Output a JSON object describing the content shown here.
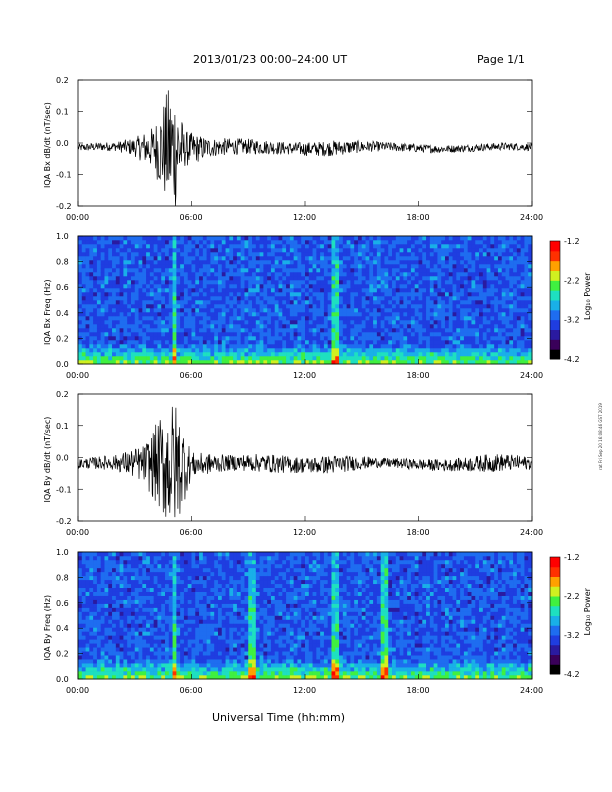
{
  "header": {
    "title": "2013/01/23  00:00–24:00 UT",
    "page": "Page 1/1"
  },
  "side_stamp": "rat Fri Sep 20 16:08:46 GST 2019",
  "xlabel": "Universal Time (hh:mm)",
  "colors": {
    "line": "#000000",
    "colormap": [
      "#000000",
      "#3a005a",
      "#2a1aa0",
      "#1f3de0",
      "#1e6df0",
      "#19b0e8",
      "#1ee0c0",
      "#40f040",
      "#d0f020",
      "#ffa000",
      "#ff3000",
      "#ff0000"
    ]
  },
  "chart_data": [
    {
      "type": "line",
      "ylabel": "IQA Bx dB/dt (nT/sec)",
      "ylim": [
        -0.2,
        0.2
      ],
      "yticks": [
        "0.2",
        "0.1",
        "0.0",
        "-0.1",
        "-0.2"
      ],
      "xticks": [
        "00:00",
        "06:00",
        "12:00",
        "18:00",
        "24:00"
      ],
      "xlim": [
        0,
        24
      ],
      "series": [
        {
          "envelope": [
            [
              0,
              0.012
            ],
            [
              2,
              0.015
            ],
            [
              3,
              0.03
            ],
            [
              4,
              0.07
            ],
            [
              4.8,
              0.2
            ],
            [
              5.2,
              0.2
            ],
            [
              5.6,
              0.06
            ],
            [
              7,
              0.03
            ],
            [
              9,
              0.025
            ],
            [
              11,
              0.02
            ],
            [
              13.5,
              0.025
            ],
            [
              16,
              0.015
            ],
            [
              20,
              0.012
            ],
            [
              24,
              0.012
            ]
          ],
          "baseline": -0.015
        }
      ]
    },
    {
      "type": "heatmap",
      "ylabel": "IQA Bx Freq (Hz)",
      "ylim": [
        0,
        1.0
      ],
      "yticks": [
        "1.0",
        "0.8",
        "0.6",
        "0.4",
        "0.2",
        "0.0"
      ],
      "xticks": [
        "00:00",
        "06:00",
        "12:00",
        "18:00",
        "24:00"
      ],
      "colorbar": {
        "label": "Log₁₀ Power",
        "ticks": [
          "-1.2",
          "-2.2",
          "-3.2",
          "-4.2"
        ],
        "range": [
          -4.2,
          -1.2
        ]
      },
      "features": [
        {
          "time": 5.1
        },
        {
          "time": 13.6
        }
      ]
    },
    {
      "type": "line",
      "ylabel": "IQA By dB/dt (nT/sec)",
      "ylim": [
        -0.2,
        0.2
      ],
      "yticks": [
        "0.2",
        "0.1",
        "0.0",
        "-0.1",
        "-0.2"
      ],
      "xticks": [
        "00:00",
        "06:00",
        "12:00",
        "18:00",
        "24:00"
      ],
      "xlim": [
        0,
        24
      ],
      "series": [
        {
          "envelope": [
            [
              0,
              0.015
            ],
            [
              2,
              0.025
            ],
            [
              3.5,
              0.06
            ],
            [
              4.8,
              0.2
            ],
            [
              5.2,
              0.2
            ],
            [
              6,
              0.04
            ],
            [
              8,
              0.025
            ],
            [
              10,
              0.03
            ],
            [
              12,
              0.025
            ],
            [
              13.5,
              0.03
            ],
            [
              16,
              0.015
            ],
            [
              20,
              0.02
            ],
            [
              22,
              0.03
            ],
            [
              24,
              0.02
            ]
          ],
          "baseline": -0.02
        }
      ]
    },
    {
      "type": "heatmap",
      "ylabel": "IQA By Freq (Hz)",
      "ylim": [
        0,
        1.0
      ],
      "yticks": [
        "1.0",
        "0.8",
        "0.6",
        "0.4",
        "0.2",
        "0.0"
      ],
      "xticks": [
        "00:00",
        "06:00",
        "12:00",
        "18:00",
        "24:00"
      ],
      "colorbar": {
        "label": "Log₁₀ Power",
        "ticks": [
          "-1.2",
          "-2.2",
          "-3.2",
          "-4.2"
        ],
        "range": [
          -4.2,
          -1.2
        ]
      },
      "features": [
        {
          "time": 5.1
        },
        {
          "time": 9.2
        },
        {
          "time": 13.6
        },
        {
          "time": 16.2
        }
      ]
    }
  ]
}
